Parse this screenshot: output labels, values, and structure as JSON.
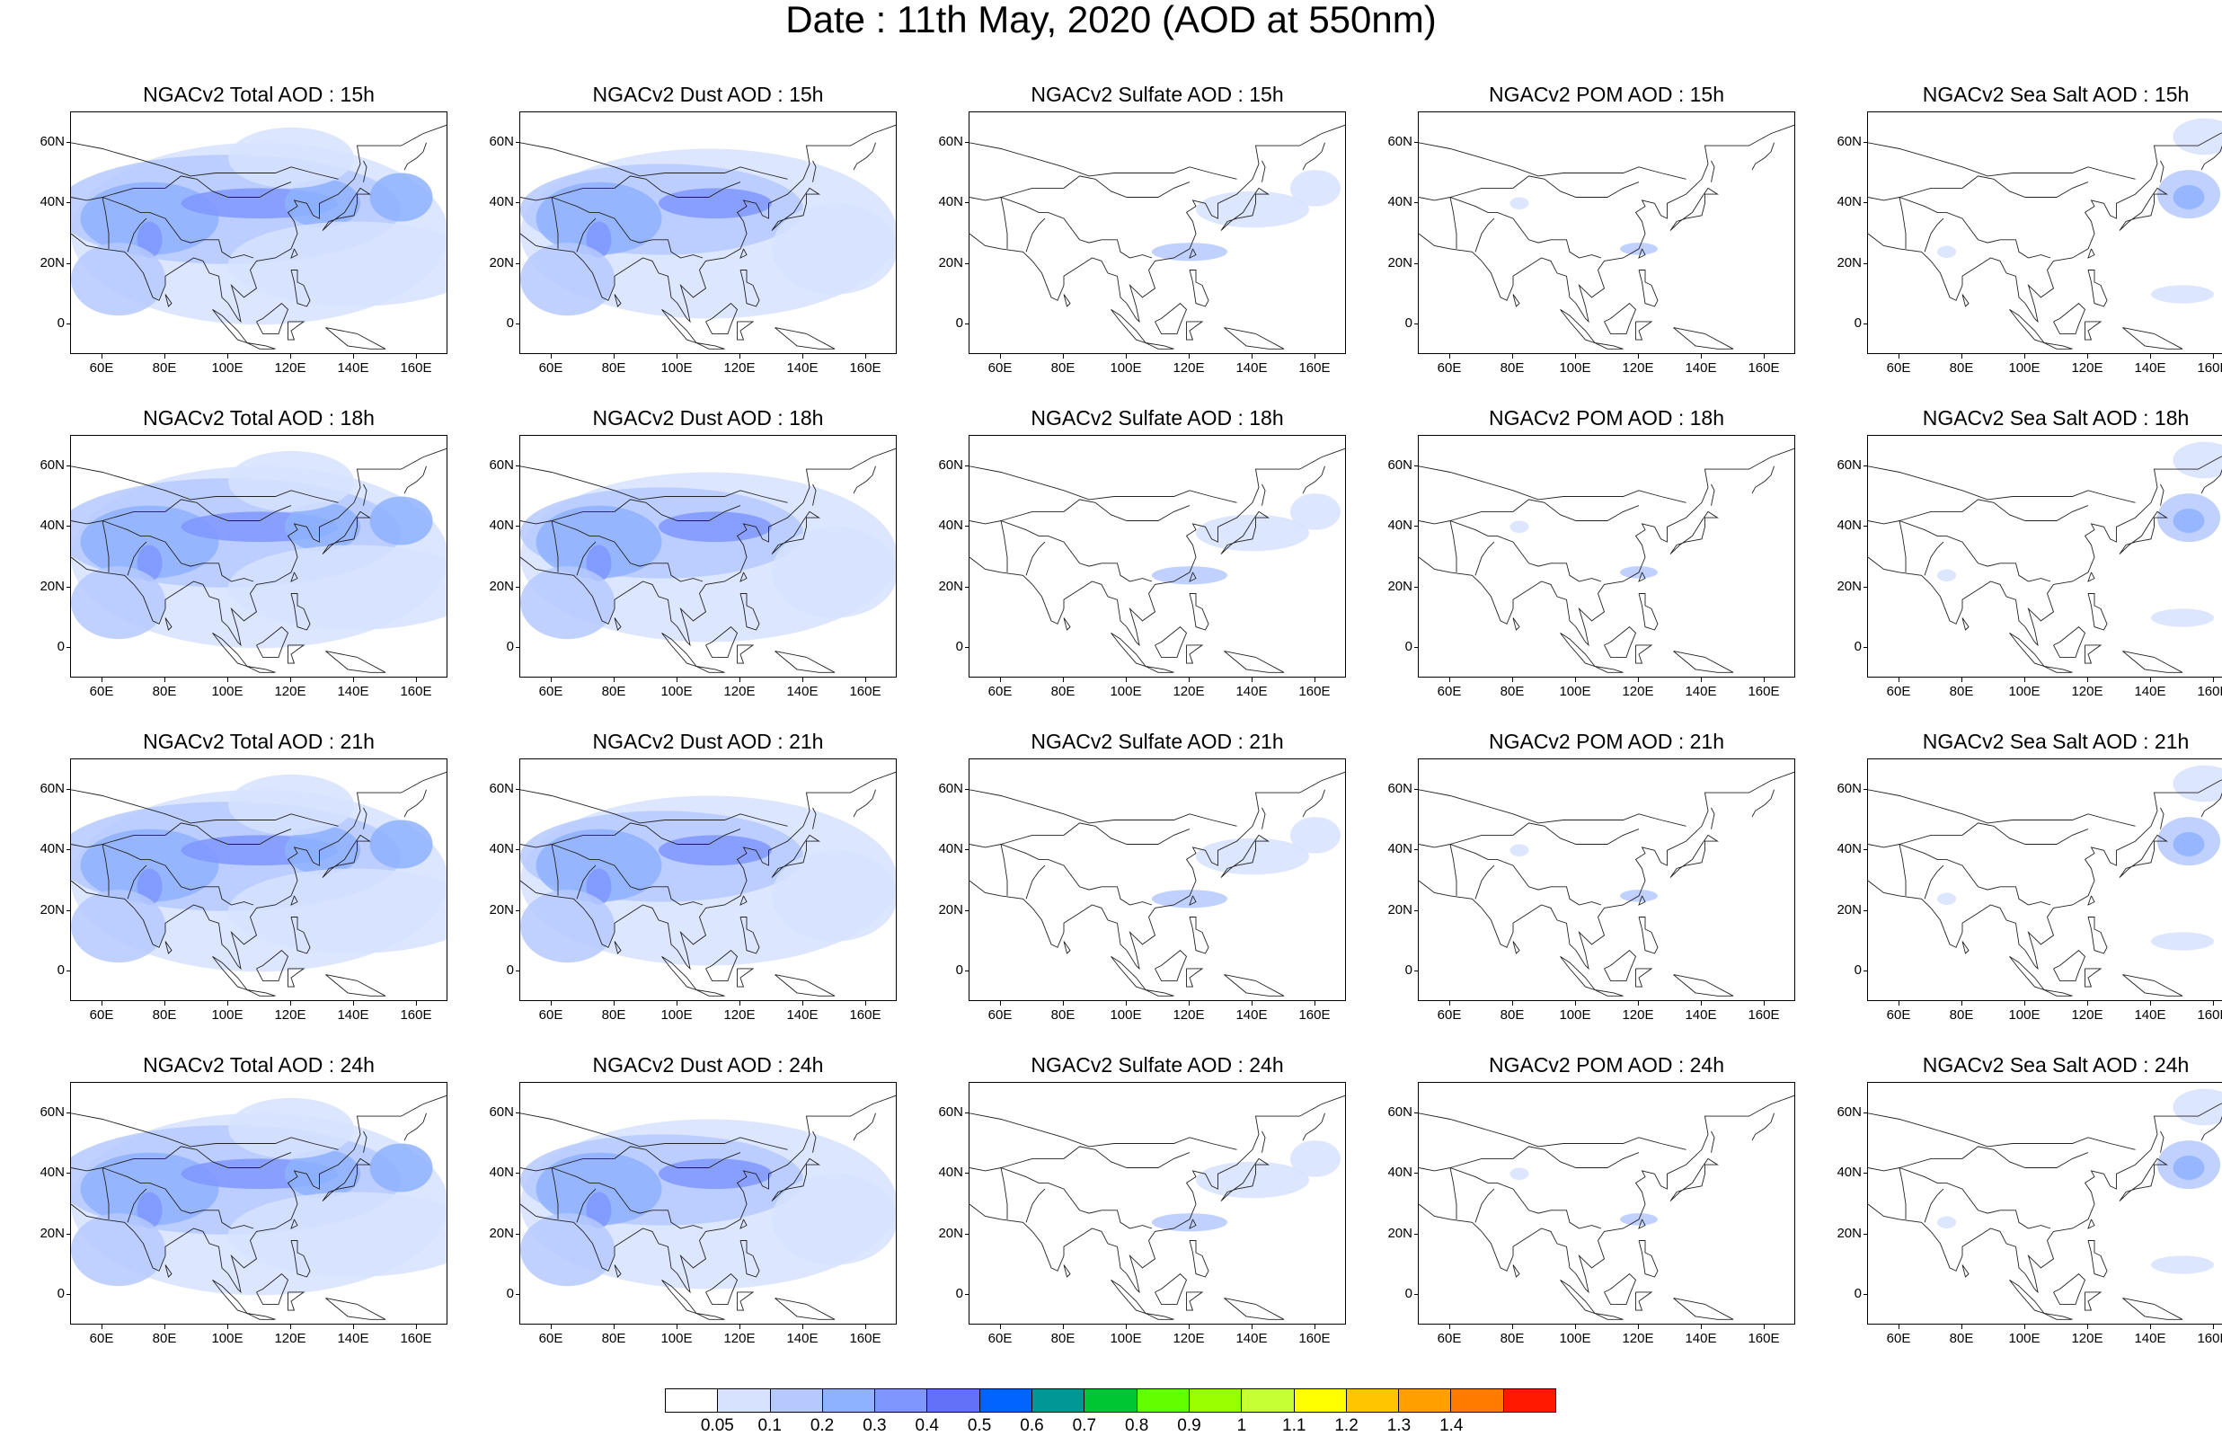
{
  "title": "Date : 11th May, 2020 (AOD at 550nm)",
  "axes": {
    "lat_ticks": [
      "60N",
      "40N",
      "20N",
      "0"
    ],
    "lon_ticks": [
      "60E",
      "80E",
      "100E",
      "120E",
      "140E",
      "160E"
    ],
    "lat_range": [
      -10,
      70
    ],
    "lon_range": [
      50,
      170
    ]
  },
  "colorbar": {
    "labels": [
      "0.05",
      "0.1",
      "0.2",
      "0.3",
      "0.4",
      "0.5",
      "0.6",
      "0.7",
      "0.8",
      "0.9",
      "1",
      "1.1",
      "1.2",
      "1.3",
      "1.4"
    ],
    "colors": [
      "#ffffff",
      "#d6e2ff",
      "#b5c9ff",
      "#8eb2ff",
      "#7f96ff",
      "#6370f8",
      "#0063ff",
      "#009696",
      "#00c633",
      "#63ff00",
      "#96ff00",
      "#c6ff33",
      "#ffff00",
      "#ffc600",
      "#ffa000",
      "#ff7c00",
      "#ff1900"
    ]
  },
  "panels": [
    {
      "title": "NGACv2 Total AOD : 15h",
      "field": "total"
    },
    {
      "title": "NGACv2 Dust AOD : 15h",
      "field": "dust"
    },
    {
      "title": "NGACv2 Sulfate AOD : 15h",
      "field": "sulfate"
    },
    {
      "title": "NGACv2 POM AOD : 15h",
      "field": "pom"
    },
    {
      "title": "NGACv2 Sea Salt AOD : 15h",
      "field": "seasalt"
    },
    {
      "title": "NGACv2 Total AOD : 18h",
      "field": "total"
    },
    {
      "title": "NGACv2 Dust AOD : 18h",
      "field": "dust"
    },
    {
      "title": "NGACv2 Sulfate AOD : 18h",
      "field": "sulfate"
    },
    {
      "title": "NGACv2 POM AOD : 18h",
      "field": "pom"
    },
    {
      "title": "NGACv2 Sea Salt AOD : 18h",
      "field": "seasalt"
    },
    {
      "title": "NGACv2 Total AOD : 21h",
      "field": "total"
    },
    {
      "title": "NGACv2 Dust AOD : 21h",
      "field": "dust"
    },
    {
      "title": "NGACv2 Sulfate AOD : 21h",
      "field": "sulfate"
    },
    {
      "title": "NGACv2 POM AOD : 21h",
      "field": "pom"
    },
    {
      "title": "NGACv2 Sea Salt AOD : 21h",
      "field": "seasalt"
    },
    {
      "title": "NGACv2 Total AOD : 24h",
      "field": "total"
    },
    {
      "title": "NGACv2 Dust AOD : 24h",
      "field": "dust"
    },
    {
      "title": "NGACv2 Sulfate AOD : 24h",
      "field": "sulfate"
    },
    {
      "title": "NGACv2 POM AOD : 24h",
      "field": "pom"
    },
    {
      "title": "NGACv2 Sea Salt  AOD : 24h",
      "field": "seasalt"
    }
  ]
}
